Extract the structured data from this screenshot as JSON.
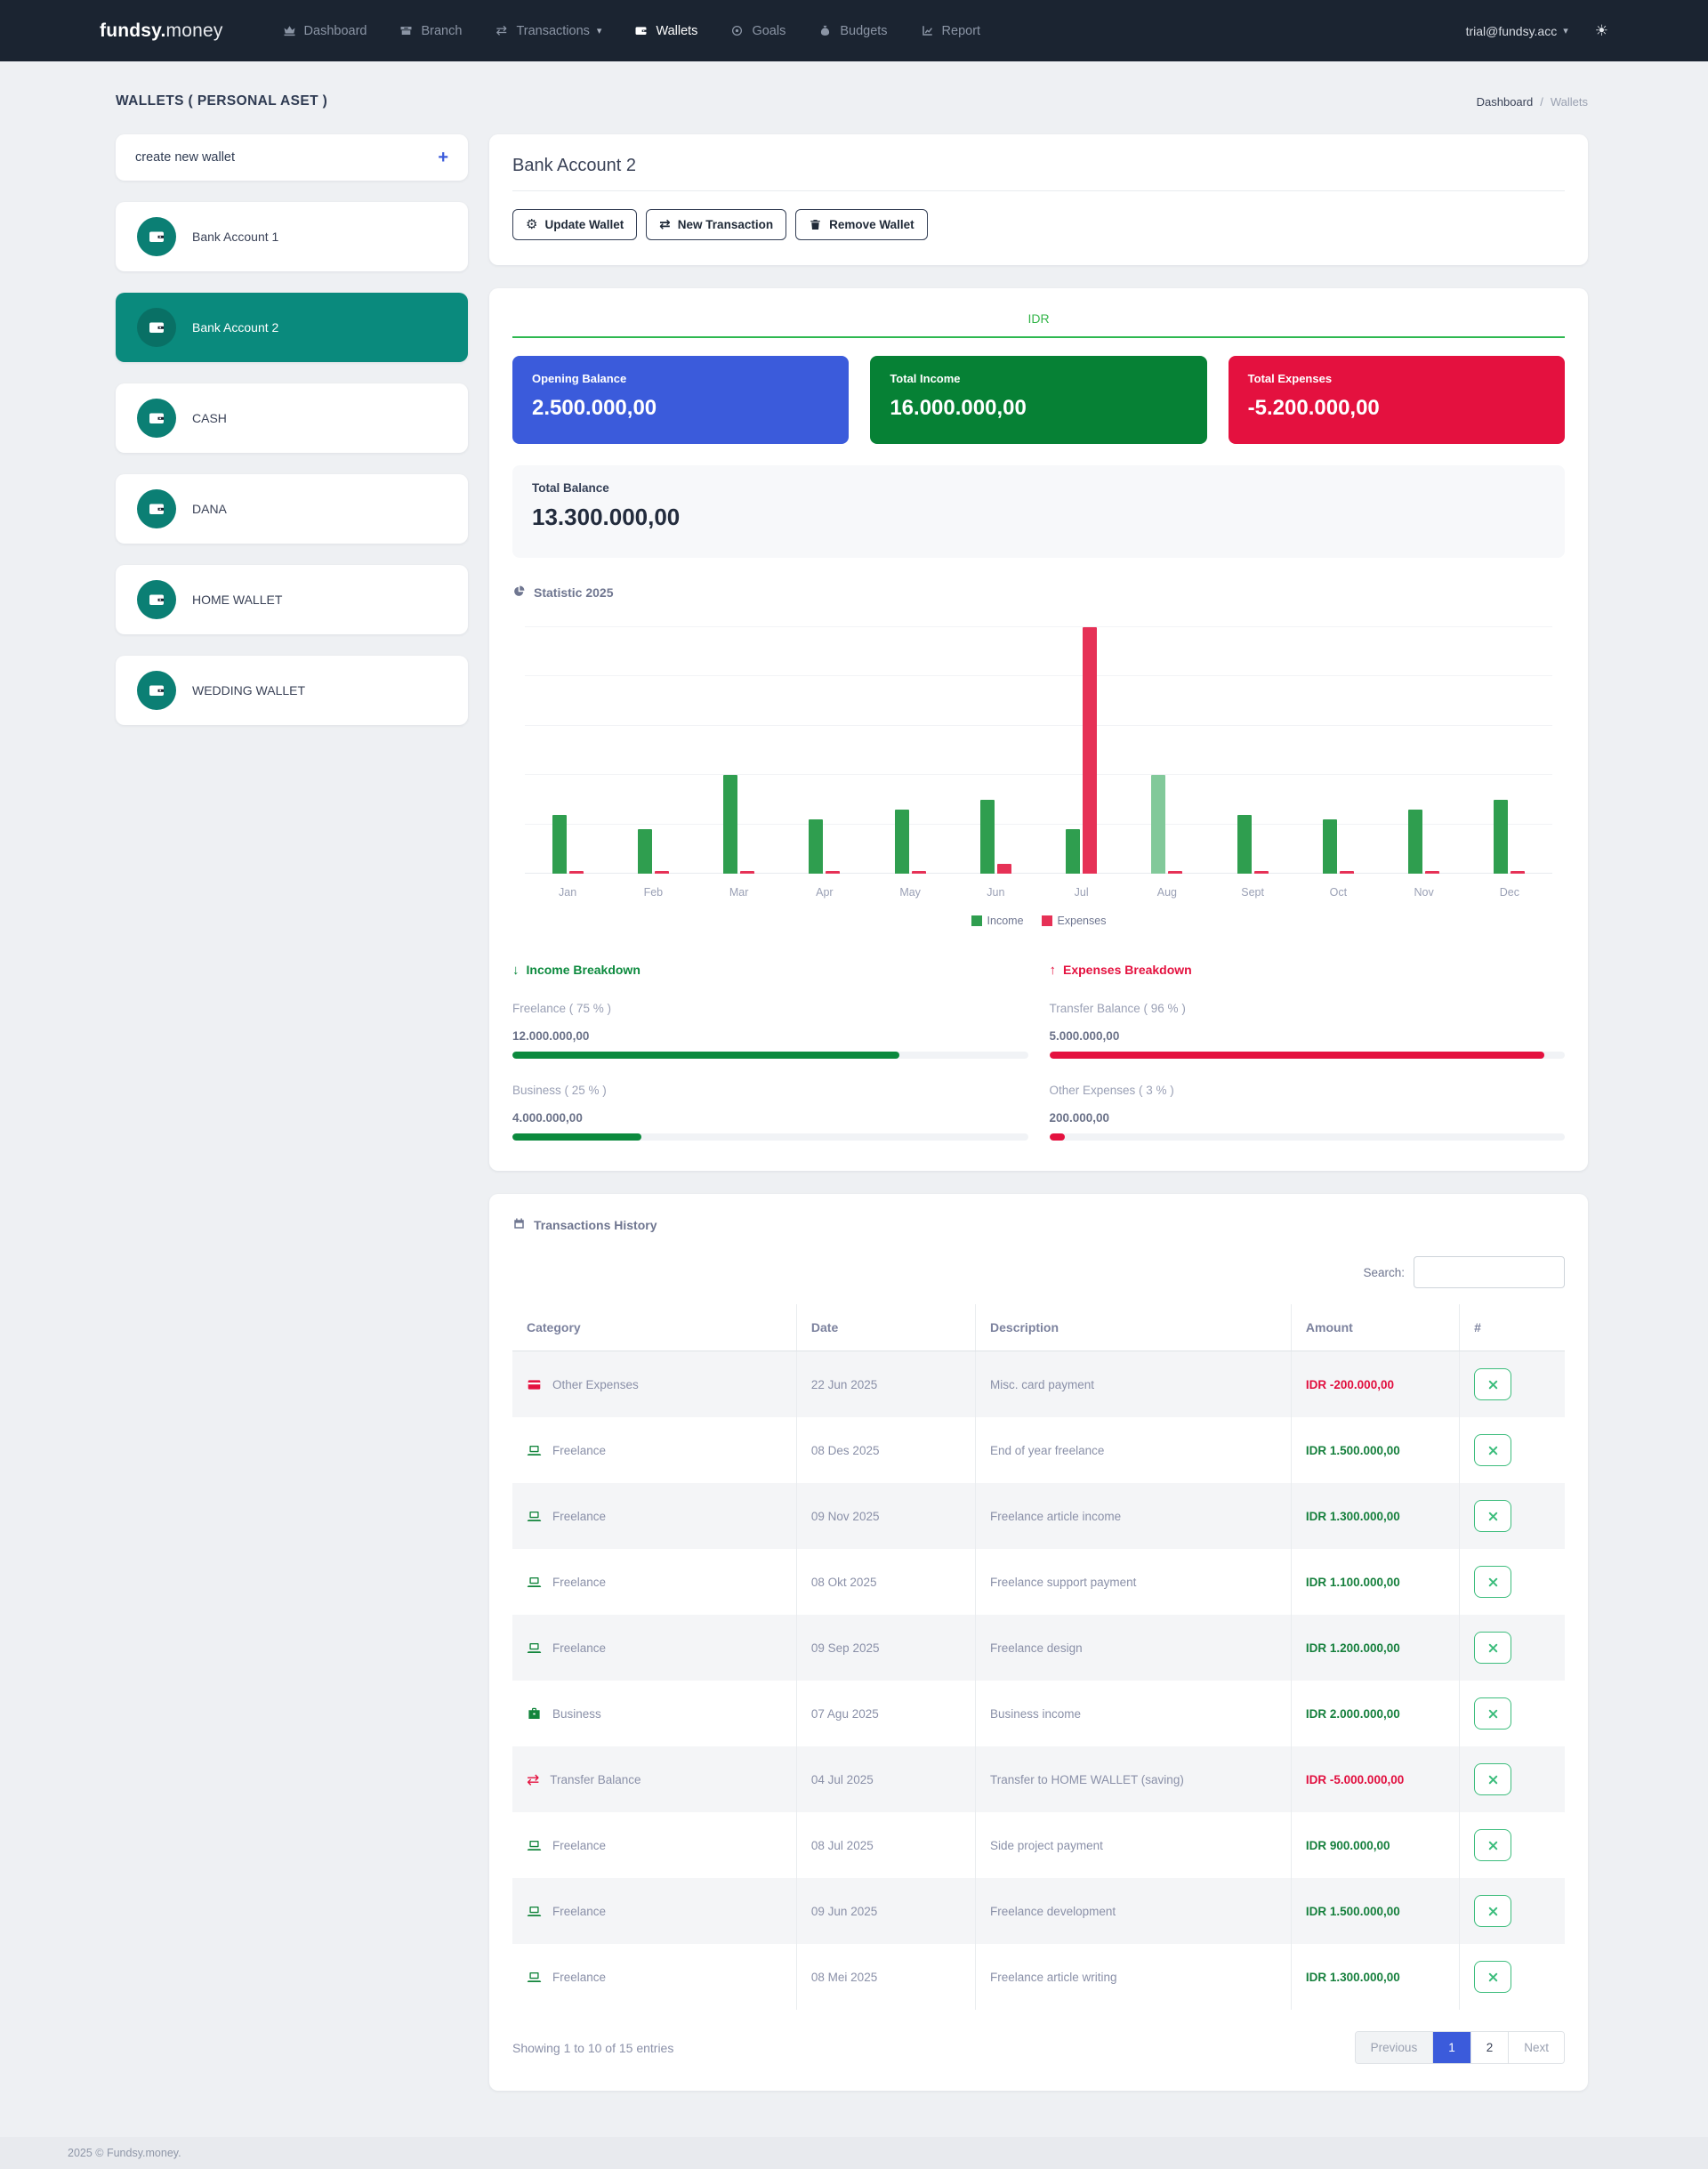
{
  "navbar": {
    "brand_bold": "fundsy.",
    "brand_light": "money",
    "items": [
      {
        "label": "Dashboard",
        "icon": "crown",
        "active": false,
        "chevron": false
      },
      {
        "label": "Branch",
        "icon": "bank",
        "active": false,
        "chevron": false
      },
      {
        "label": "Transactions",
        "icon": "transfer",
        "active": false,
        "chevron": true
      },
      {
        "label": "Wallets",
        "icon": "wallet",
        "active": true,
        "chevron": false
      },
      {
        "label": "Goals",
        "icon": "target",
        "active": false,
        "chevron": false
      },
      {
        "label": "Budgets",
        "icon": "money-bag",
        "active": false,
        "chevron": false
      },
      {
        "label": "Report",
        "icon": "chart-line",
        "active": false,
        "chevron": false
      }
    ],
    "account": "trial@fundsy.acc",
    "theme_icon": "sun"
  },
  "page": {
    "title": "WALLETS ( PERSONAL ASET )",
    "breadcrumb": {
      "parent": "Dashboard",
      "separator": "/",
      "current": "Wallets"
    },
    "footer": "2025 © Fundsy.money."
  },
  "sidebar": {
    "create_label": "create new wallet",
    "plus_icon": "+",
    "wallets": [
      {
        "name": "Bank Account 1",
        "active": false
      },
      {
        "name": "Bank Account 2",
        "active": true
      },
      {
        "name": "CASH",
        "active": false
      },
      {
        "name": "DANA",
        "active": false
      },
      {
        "name": "HOME WALLET",
        "active": false
      },
      {
        "name": "WEDDING WALLET",
        "active": false
      }
    ]
  },
  "wallet_header": {
    "title": "Bank Account 2",
    "buttons": [
      {
        "label": "Update Wallet",
        "icon": "gear"
      },
      {
        "label": "New Transaction",
        "icon": "transfer"
      },
      {
        "label": "Remove Wallet",
        "icon": "trash"
      }
    ]
  },
  "overview": {
    "currency": "IDR",
    "cards": [
      {
        "label": "Opening Balance",
        "value": "2.500.000,00",
        "color": "#3b5bdb"
      },
      {
        "label": "Total Income",
        "value": "16.000.000,00",
        "color": "#068135"
      },
      {
        "label": "Total Expenses",
        "value": "-5.200.000,00",
        "color": "#e4113f"
      }
    ],
    "total_balance_label": "Total Balance",
    "total_balance": "13.300.000,00",
    "statistic_title": "Statistic 2025"
  },
  "chart_data": {
    "type": "bar",
    "title": "Statistic 2025",
    "categories": [
      "Jan",
      "Feb",
      "Mar",
      "Apr",
      "May",
      "Jun",
      "Jul",
      "Aug",
      "Sept",
      "Oct",
      "Nov",
      "Dec"
    ],
    "series": [
      {
        "name": "Income",
        "color": "#2f9e4f",
        "values": [
          1200000,
          900000,
          2000000,
          1100000,
          1300000,
          1500000,
          900000,
          2000000,
          1200000,
          1100000,
          1300000,
          1500000
        ]
      },
      {
        "name": "Expenses",
        "color": "#e63156",
        "values": [
          0,
          0,
          0,
          0,
          0,
          200000,
          5000000,
          0,
          0,
          0,
          0,
          0
        ]
      }
    ],
    "ylim": [
      0,
      5000000
    ],
    "gridlines": true,
    "legend_position": "bottom",
    "highlighted_bar": {
      "series": "Income",
      "category": "Aug",
      "color": "#82c99a"
    }
  },
  "breakdowns": {
    "income": {
      "title": "Income Breakdown",
      "arrow": "down",
      "accent": "#0c8a3e",
      "items": [
        {
          "label": "Freelance ( 75 % )",
          "value": "12.000.000,00",
          "pct": 75
        },
        {
          "label": "Business ( 25 % )",
          "value": "4.000.000,00",
          "pct": 25
        }
      ]
    },
    "expenses": {
      "title": "Expenses Breakdown",
      "arrow": "up",
      "accent": "#e4113f",
      "items": [
        {
          "label": "Transfer Balance ( 96 % )",
          "value": "5.000.000,00",
          "pct": 96
        },
        {
          "label": "Other Expenses ( 3 % )",
          "value": "200.000,00",
          "pct": 3
        }
      ]
    }
  },
  "transactions": {
    "title": "Transactions History",
    "search_label": "Search:",
    "columns": [
      "Category",
      "Date",
      "Description",
      "Amount",
      "#"
    ],
    "rows": [
      {
        "category": "Other Expenses",
        "icon": "credit-card",
        "icon_color": "#e4113f",
        "date": "22 Jun 2025",
        "description": "Misc. card payment",
        "amount": "IDR -200.000,00",
        "negative": true
      },
      {
        "category": "Freelance",
        "icon": "laptop",
        "icon_color": "#12853c",
        "date": "08 Des 2025",
        "description": "End of year freelance",
        "amount": "IDR 1.500.000,00",
        "negative": false
      },
      {
        "category": "Freelance",
        "icon": "laptop",
        "icon_color": "#12853c",
        "date": "09 Nov 2025",
        "description": "Freelance article income",
        "amount": "IDR 1.300.000,00",
        "negative": false
      },
      {
        "category": "Freelance",
        "icon": "laptop",
        "icon_color": "#12853c",
        "date": "08 Okt 2025",
        "description": "Freelance support payment",
        "amount": "IDR 1.100.000,00",
        "negative": false
      },
      {
        "category": "Freelance",
        "icon": "laptop",
        "icon_color": "#12853c",
        "date": "09 Sep 2025",
        "description": "Freelance design",
        "amount": "IDR 1.200.000,00",
        "negative": false
      },
      {
        "category": "Business",
        "icon": "briefcase",
        "icon_color": "#12853c",
        "date": "07 Agu 2025",
        "description": "Business income",
        "amount": "IDR 2.000.000,00",
        "negative": false
      },
      {
        "category": "Transfer Balance",
        "icon": "transfer",
        "icon_color": "#e4113f",
        "date": "04 Jul 2025",
        "description": "Transfer to HOME WALLET (saving)",
        "amount": "IDR -5.000.000,00",
        "negative": true
      },
      {
        "category": "Freelance",
        "icon": "laptop",
        "icon_color": "#12853c",
        "date": "08 Jul 2025",
        "description": "Side project payment",
        "amount": "IDR 900.000,00",
        "negative": false
      },
      {
        "category": "Freelance",
        "icon": "laptop",
        "icon_color": "#12853c",
        "date": "09 Jun 2025",
        "description": "Freelance development",
        "amount": "IDR 1.500.000,00",
        "negative": false
      },
      {
        "category": "Freelance",
        "icon": "laptop",
        "icon_color": "#12853c",
        "date": "08 Mei 2025",
        "description": "Freelance article writing",
        "amount": "IDR 1.300.000,00",
        "negative": false
      }
    ],
    "action_icon": "tools",
    "summary": "Showing 1 to 10 of 15 entries",
    "pagination": {
      "previous": "Previous",
      "pages": [
        "1",
        "2"
      ],
      "active": "1",
      "next": "Next"
    }
  },
  "colors": {
    "navbar_bg": "#1b2431",
    "accent_blue": "#3b5bdb",
    "teal": "#0b7f74",
    "teal_active": "#0a8a7d",
    "income_green": "#2f9e4f",
    "expense_red": "#e63156",
    "currency_green": "#34b54a",
    "action_green": "#3dbd7d"
  }
}
